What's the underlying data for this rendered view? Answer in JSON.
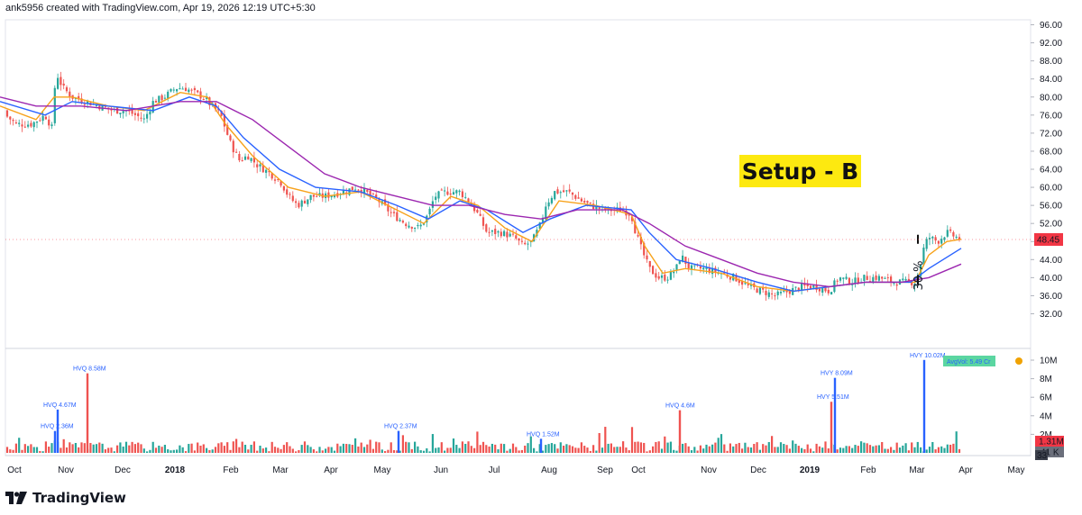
{
  "header": {
    "attribution": "ank5956 created with TradingView.com, Apr 19, 2026 12:19 UTC+5:30"
  },
  "brand": {
    "name": "TradingView"
  },
  "annotations": {
    "setup_label": "Setup - B",
    "gain_label": "30 %"
  },
  "colors": {
    "up": "#26a69a",
    "down": "#ef5350",
    "ma_fast": "#f7a21b",
    "ma_mid": "#2962ff",
    "ma_slow": "#9c27b0",
    "price_badge": "#f23645",
    "vol_badge": "#f23645",
    "avg_badge": "#5bd6a1",
    "highlight": "#fde910"
  },
  "chart_data": {
    "type": "candlestick",
    "price_axis": {
      "ylim": [
        30,
        98
      ],
      "ticks": [
        "96.00",
        "92.00",
        "88.00",
        "84.00",
        "80.00",
        "76.00",
        "72.00",
        "68.00",
        "64.00",
        "60.00",
        "56.00",
        "52.00",
        "48.00",
        "44.00",
        "40.00",
        "36.00",
        "32.00"
      ],
      "last_price": "48.45"
    },
    "x_axis": {
      "labels": [
        "Oct",
        "Nov",
        "Dec",
        "2018",
        "Feb",
        "Mar",
        "Apr",
        "May",
        "Jun",
        "Jul",
        "Aug",
        "Sep",
        "Oct",
        "Nov",
        "Dec",
        "2019",
        "Feb",
        "Mar",
        "Apr",
        "May"
      ],
      "bold": [
        "2018",
        "2019"
      ]
    },
    "price_series": {
      "name": "close",
      "points": [
        [
          0,
          77
        ],
        [
          18,
          74
        ],
        [
          35,
          74
        ],
        [
          50,
          76
        ],
        [
          58,
          73
        ],
        [
          62,
          86
        ],
        [
          65,
          84
        ],
        [
          70,
          82
        ],
        [
          80,
          80
        ],
        [
          95,
          79
        ],
        [
          110,
          78
        ],
        [
          125,
          77
        ],
        [
          140,
          77
        ],
        [
          150,
          76
        ],
        [
          160,
          75
        ],
        [
          170,
          79
        ],
        [
          182,
          80
        ],
        [
          195,
          82
        ],
        [
          205,
          82
        ],
        [
          215,
          81
        ],
        [
          225,
          80
        ],
        [
          235,
          78
        ],
        [
          245,
          76
        ],
        [
          255,
          70
        ],
        [
          265,
          66
        ],
        [
          275,
          67
        ],
        [
          285,
          65
        ],
        [
          300,
          63
        ],
        [
          312,
          61
        ],
        [
          320,
          58
        ],
        [
          330,
          56
        ],
        [
          345,
          58
        ],
        [
          360,
          58
        ],
        [
          380,
          59
        ],
        [
          395,
          60
        ],
        [
          405,
          59
        ],
        [
          420,
          57
        ],
        [
          435,
          54
        ],
        [
          450,
          52
        ],
        [
          465,
          51
        ],
        [
          475,
          54
        ],
        [
          482,
          58
        ],
        [
          495,
          59
        ],
        [
          510,
          59
        ],
        [
          520,
          57
        ],
        [
          530,
          54
        ],
        [
          540,
          50
        ],
        [
          555,
          50
        ],
        [
          570,
          49
        ],
        [
          580,
          47
        ],
        [
          590,
          48
        ],
        [
          600,
          52
        ],
        [
          605,
          56
        ],
        [
          615,
          59
        ],
        [
          630,
          59
        ],
        [
          645,
          57
        ],
        [
          655,
          56
        ],
        [
          670,
          55
        ],
        [
          690,
          55
        ],
        [
          700,
          54
        ],
        [
          705,
          50
        ],
        [
          712,
          46
        ],
        [
          720,
          42
        ],
        [
          730,
          40
        ],
        [
          740,
          40
        ],
        [
          750,
          42
        ],
        [
          755,
          45
        ],
        [
          765,
          42
        ],
        [
          780,
          42
        ],
        [
          800,
          41
        ],
        [
          815,
          40
        ],
        [
          830,
          38
        ],
        [
          845,
          37
        ],
        [
          860,
          36
        ],
        [
          875,
          37
        ],
        [
          890,
          38
        ],
        [
          905,
          38
        ],
        [
          920,
          37
        ],
        [
          930,
          40
        ],
        [
          945,
          39
        ],
        [
          960,
          40
        ],
        [
          975,
          40
        ],
        [
          990,
          39
        ],
        [
          1005,
          39
        ],
        [
          1015,
          39
        ],
        [
          1020,
          42
        ],
        [
          1025,
          47
        ],
        [
          1030,
          49
        ],
        [
          1040,
          48
        ],
        [
          1050,
          50
        ],
        [
          1060,
          49
        ],
        [
          1066,
          48.45
        ]
      ]
    },
    "moving_averages": [
      {
        "name": "ma_fast",
        "points": [
          [
            0,
            78
          ],
          [
            40,
            75
          ],
          [
            60,
            80
          ],
          [
            80,
            80
          ],
          [
            120,
            78
          ],
          [
            160,
            77
          ],
          [
            200,
            81
          ],
          [
            230,
            80
          ],
          [
            250,
            74
          ],
          [
            280,
            67
          ],
          [
            320,
            60
          ],
          [
            360,
            58
          ],
          [
            400,
            59
          ],
          [
            440,
            55
          ],
          [
            470,
            52
          ],
          [
            500,
            58
          ],
          [
            530,
            56
          ],
          [
            560,
            51
          ],
          [
            590,
            48
          ],
          [
            620,
            57
          ],
          [
            660,
            56
          ],
          [
            700,
            54
          ],
          [
            715,
            47
          ],
          [
            735,
            41
          ],
          [
            760,
            42
          ],
          [
            800,
            41
          ],
          [
            840,
            38
          ],
          [
            880,
            37
          ],
          [
            920,
            38
          ],
          [
            960,
            39
          ],
          [
            1000,
            39
          ],
          [
            1015,
            39
          ],
          [
            1030,
            45
          ],
          [
            1050,
            48
          ],
          [
            1066,
            48.5
          ]
        ]
      },
      {
        "name": "ma_mid",
        "points": [
          [
            0,
            79
          ],
          [
            50,
            76
          ],
          [
            80,
            79
          ],
          [
            120,
            78
          ],
          [
            170,
            77
          ],
          [
            210,
            80
          ],
          [
            240,
            78
          ],
          [
            270,
            71
          ],
          [
            310,
            64
          ],
          [
            350,
            60
          ],
          [
            400,
            59
          ],
          [
            440,
            56
          ],
          [
            475,
            53
          ],
          [
            510,
            57
          ],
          [
            540,
            55
          ],
          [
            580,
            50
          ],
          [
            610,
            53
          ],
          [
            650,
            56
          ],
          [
            700,
            55
          ],
          [
            720,
            50
          ],
          [
            750,
            44
          ],
          [
            790,
            42
          ],
          [
            840,
            39
          ],
          [
            880,
            37
          ],
          [
            920,
            38
          ],
          [
            960,
            39
          ],
          [
            1010,
            39
          ],
          [
            1030,
            42
          ],
          [
            1066,
            46.5
          ]
        ]
      },
      {
        "name": "ma_slow",
        "points": [
          [
            0,
            80
          ],
          [
            40,
            78
          ],
          [
            90,
            78
          ],
          [
            140,
            77
          ],
          [
            200,
            79
          ],
          [
            240,
            79
          ],
          [
            280,
            75
          ],
          [
            320,
            69
          ],
          [
            360,
            63
          ],
          [
            400,
            60
          ],
          [
            440,
            58
          ],
          [
            480,
            56
          ],
          [
            520,
            56
          ],
          [
            560,
            54
          ],
          [
            600,
            53
          ],
          [
            640,
            55
          ],
          [
            690,
            55
          ],
          [
            720,
            52
          ],
          [
            760,
            47
          ],
          [
            800,
            44
          ],
          [
            840,
            41
          ],
          [
            880,
            39
          ],
          [
            920,
            38
          ],
          [
            960,
            39
          ],
          [
            1000,
            39
          ],
          [
            1030,
            40
          ],
          [
            1066,
            43
          ]
        ]
      }
    ],
    "volume_axis": {
      "ylim": [
        0,
        11
      ],
      "unit": "M",
      "ticks": [
        "10M",
        "8M",
        "6M",
        "4M",
        "2M"
      ],
      "last_volume": "1.31M",
      "avg_volume": "41 K",
      "count": "33",
      "avg_label": "AvgVol: 5.49 Cr"
    },
    "volume_annotations": [
      {
        "x": 61,
        "value": 2.36,
        "label": "HVQ 2.36M",
        "color": "#2962ff"
      },
      {
        "x": 64,
        "value": 4.67,
        "label": "HVQ 4.67M",
        "color": "#2962ff"
      },
      {
        "x": 97,
        "value": 8.58,
        "label": "HVQ 8.58M",
        "color": "#ef5350"
      },
      {
        "x": 442,
        "value": 2.37,
        "label": "HVQ 2.37M",
        "color": "#2962ff"
      },
      {
        "x": 600,
        "value": 1.52,
        "label": "HVQ 1.52M",
        "color": "#2962ff"
      },
      {
        "x": 754,
        "value": 4.6,
        "label": "HVQ 4.6M",
        "color": "#ef5350"
      },
      {
        "x": 922,
        "value": 5.51,
        "label": "HVY 5.51M",
        "color": "#ef5350"
      },
      {
        "x": 926,
        "value": 8.09,
        "label": "HVY 8.09M",
        "color": "#2962ff"
      },
      {
        "x": 1025,
        "value": 10.02,
        "label": "HVY 10.02M",
        "color": "#2962ff"
      }
    ]
  }
}
